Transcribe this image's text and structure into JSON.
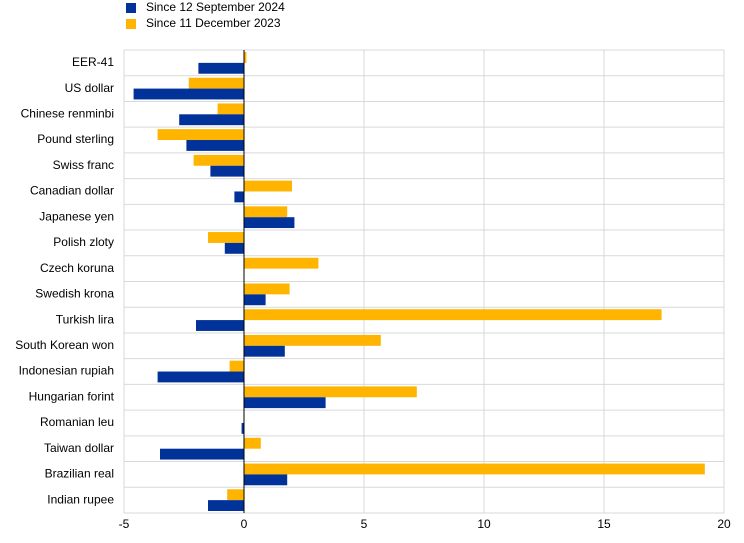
{
  "chart_data": {
    "type": "hbar",
    "categories": [
      "EER-41",
      "US dollar",
      "Chinese renminbi",
      "Pound sterling",
      "Swiss franc",
      "Canadian dollar",
      "Japanese yen",
      "Polish zloty",
      "Czech koruna",
      "Swedish krona",
      "Turkish lira",
      "South Korean won",
      "Indonesian rupiah",
      "Hungarian forint",
      "Romanian leu",
      "Taiwan dollar",
      "Brazilian real",
      "Indian rupee"
    ],
    "series": [
      {
        "name": "Since 12 September 2024",
        "color": "#003299",
        "values": [
          -1.9,
          -4.6,
          -2.7,
          -2.4,
          -1.4,
          -0.4,
          2.1,
          -0.8,
          0.0,
          0.9,
          -2.0,
          1.7,
          -3.6,
          3.4,
          -0.1,
          -3.5,
          1.8,
          -1.5
        ]
      },
      {
        "name": "Since 11 December 2023",
        "color": "#ffb400",
        "values": [
          0.1,
          -2.3,
          -1.1,
          -3.6,
          -2.1,
          2.0,
          1.8,
          -1.5,
          3.1,
          1.9,
          17.4,
          5.7,
          -0.6,
          7.2,
          0.0,
          0.7,
          19.2,
          -0.7
        ]
      }
    ],
    "xlim": [
      -5,
      20
    ],
    "xticks": [
      -5,
      0,
      5,
      10,
      15,
      20
    ],
    "grid": true
  }
}
